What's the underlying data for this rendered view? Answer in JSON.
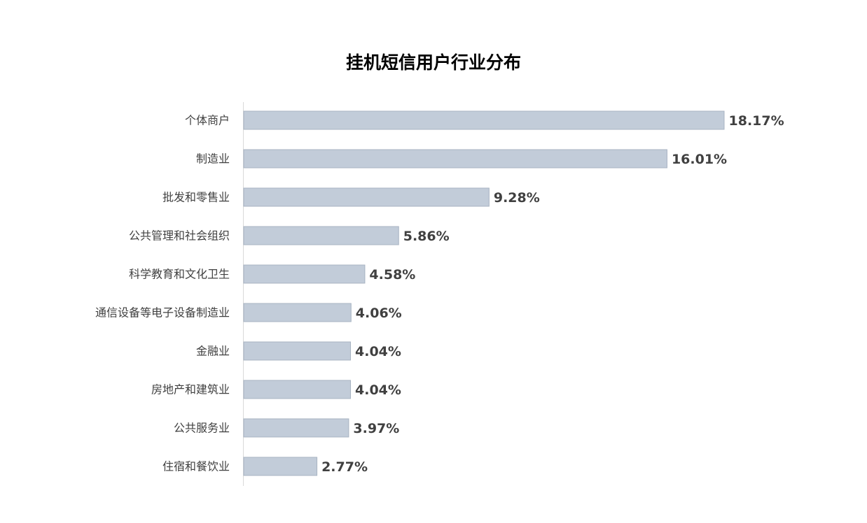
{
  "chart_data": {
    "type": "bar",
    "orientation": "horizontal",
    "title": "挂机短信用户行业分布",
    "xlabel": "",
    "ylabel": "",
    "categories": [
      "个体商户",
      "制造业",
      "批发和零售业",
      "公共管理和社会组织",
      "科学教育和文化卫生",
      "通信设备等电子设备制造业",
      "金融业",
      "房地产和建筑业",
      "公共服务业",
      "住宿和餐饮业"
    ],
    "values": [
      18.17,
      16.01,
      9.28,
      5.86,
      4.58,
      4.06,
      4.04,
      4.04,
      3.97,
      2.77
    ],
    "value_labels": [
      "18.17%",
      "16.01%",
      "9.28%",
      "5.86%",
      "4.58%",
      "4.06%",
      "4.04%",
      "4.04%",
      "3.97%",
      "2.77%"
    ],
    "xlim": [
      0,
      18.17
    ],
    "grid": false,
    "legend": "none",
    "colors": {
      "bar_fill": "#c2ccd9",
      "bar_stroke": "#a8b3c2",
      "axis": "#d9d9d9",
      "category_text": "#404040",
      "value_text": "#404040",
      "title_text": "#000000"
    }
  }
}
